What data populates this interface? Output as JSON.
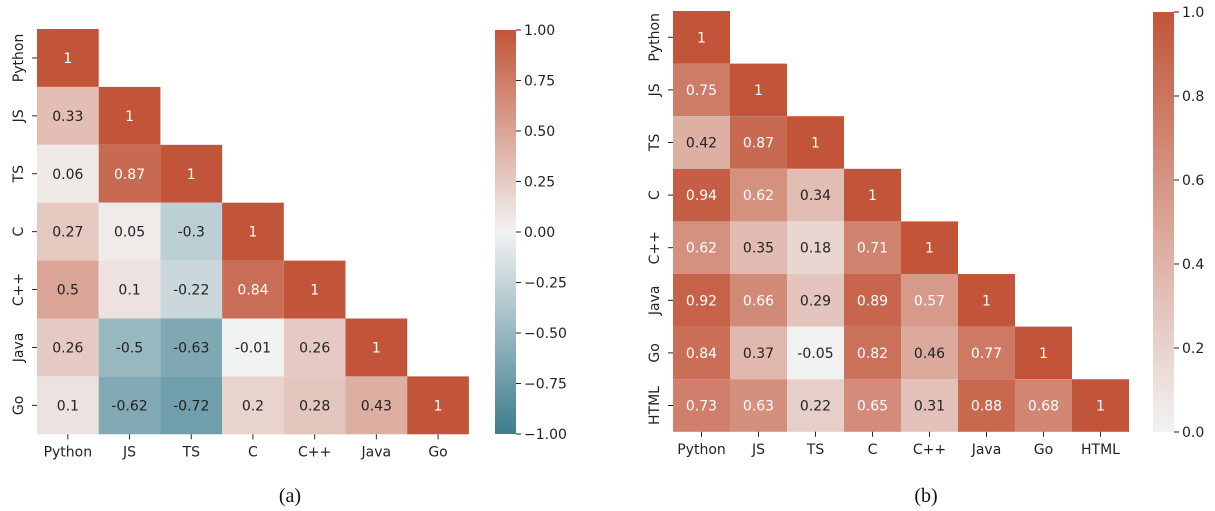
{
  "chart_data": [
    {
      "type": "heatmap",
      "panel_label": "(a)",
      "labels": [
        "Python",
        "JS",
        "TS",
        "C",
        "C++",
        "Java",
        "Go"
      ],
      "matrix": [
        [
          1
        ],
        [
          0.33,
          1
        ],
        [
          0.06,
          0.87,
          1
        ],
        [
          0.27,
          0.05,
          -0.3,
          1
        ],
        [
          0.5,
          0.1,
          -0.22,
          0.84,
          1
        ],
        [
          0.26,
          -0.5,
          -0.63,
          -0.01,
          0.26,
          1
        ],
        [
          0.1,
          -0.62,
          -0.72,
          0.2,
          0.28,
          0.43,
          1
        ]
      ],
      "value_text": [
        [
          "1"
        ],
        [
          "0.33",
          "1"
        ],
        [
          "0.06",
          "0.87",
          "1"
        ],
        [
          "0.27",
          "0.05",
          "-0.3",
          "1"
        ],
        [
          "0.5",
          "0.1",
          "-0.22",
          "0.84",
          "1"
        ],
        [
          "0.26",
          "-0.5",
          "-0.63",
          "-0.01",
          "0.26",
          "1"
        ],
        [
          "0.1",
          "-0.62",
          "-0.72",
          "0.2",
          "0.28",
          "0.43",
          "1"
        ]
      ],
      "colorbar": {
        "range": [
          -1.0,
          1.0
        ],
        "ticks": [
          1.0,
          0.75,
          0.5,
          0.25,
          0.0,
          -0.25,
          -0.5,
          -0.75,
          -1.0
        ],
        "tick_labels": [
          "1.00",
          "0.75",
          "0.50",
          "0.25",
          "0.00",
          "−0.25",
          "−0.50",
          "−0.75",
          "−1.00"
        ],
        "colormap": "diverging teal-white-red",
        "colors": {
          "low": "#3d7d8e",
          "mid": "#f2f2f2",
          "high": "#c25539"
        }
      }
    },
    {
      "type": "heatmap",
      "panel_label": "(b)",
      "labels": [
        "Python",
        "JS",
        "TS",
        "C",
        "C++",
        "Java",
        "Go",
        "HTML"
      ],
      "matrix": [
        [
          1
        ],
        [
          0.75,
          1
        ],
        [
          0.42,
          0.87,
          1
        ],
        [
          0.94,
          0.62,
          0.34,
          1
        ],
        [
          0.62,
          0.35,
          0.18,
          0.71,
          1
        ],
        [
          0.92,
          0.66,
          0.29,
          0.89,
          0.57,
          1
        ],
        [
          0.84,
          0.37,
          -0.05,
          0.82,
          0.46,
          0.77,
          1
        ],
        [
          0.73,
          0.63,
          0.22,
          0.65,
          0.31,
          0.88,
          0.68,
          1
        ]
      ],
      "value_text": [
        [
          "1"
        ],
        [
          "0.75",
          "1"
        ],
        [
          "0.42",
          "0.87",
          "1"
        ],
        [
          "0.94",
          "0.62",
          "0.34",
          "1"
        ],
        [
          "0.62",
          "0.35",
          "0.18",
          "0.71",
          "1"
        ],
        [
          "0.92",
          "0.66",
          "0.29",
          "0.89",
          "0.57",
          "1"
        ],
        [
          "0.84",
          "0.37",
          "-0.05",
          "0.82",
          "0.46",
          "0.77",
          "1"
        ],
        [
          "0.73",
          "0.63",
          "0.22",
          "0.65",
          "0.31",
          "0.88",
          "0.68",
          "1"
        ]
      ],
      "colorbar": {
        "range": [
          0.0,
          1.0
        ],
        "ticks": [
          1.0,
          0.8,
          0.6,
          0.4,
          0.2,
          0.0
        ],
        "tick_labels": [
          "1.0",
          "0.8",
          "0.6",
          "0.4",
          "0.2",
          "0.0"
        ],
        "colormap": "white-red",
        "colors": {
          "low": "#f2f2f2",
          "high": "#c25539"
        }
      }
    }
  ]
}
